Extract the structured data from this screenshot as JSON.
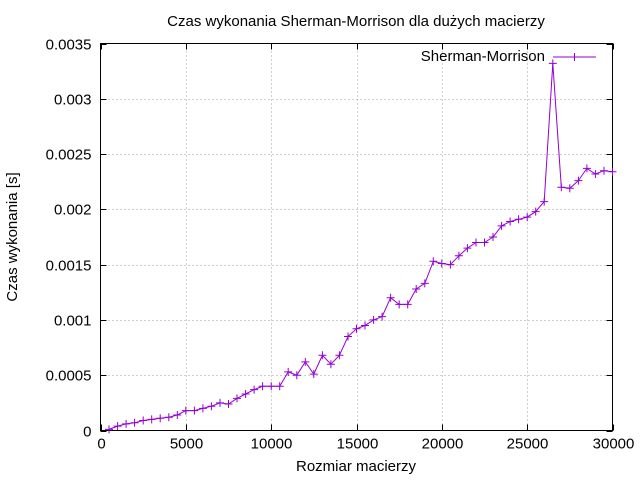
{
  "chart_data": {
    "type": "line",
    "title": "Czas wykonania Sherman-Morrison dla dużych macierzy",
    "xlabel": "Rozmiar macierzy",
    "ylabel": "Czas wykonania [s]",
    "xlim": [
      0,
      30000
    ],
    "ylim": [
      0,
      0.0035
    ],
    "xticks": [
      0,
      5000,
      10000,
      15000,
      20000,
      25000,
      30000
    ],
    "xtick_labels": [
      "0",
      "5000",
      "10000",
      "15000",
      "20000",
      "25000",
      "30000"
    ],
    "yticks": [
      0,
      0.0005,
      0.001,
      0.0015,
      0.002,
      0.0025,
      0.003,
      0.0035
    ],
    "ytick_labels": [
      "0",
      "0.0005",
      "0.001",
      "0.0015",
      "0.002",
      "0.0025",
      "0.003",
      "0.0035"
    ],
    "grid": true,
    "legend_position": "top-right",
    "series": [
      {
        "name": "Sherman-Morrison",
        "color": "#9400d3",
        "marker": "plus",
        "x": [
          500,
          1000,
          1500,
          2000,
          2500,
          3000,
          3500,
          4000,
          4500,
          5000,
          5500,
          6000,
          6500,
          7000,
          7500,
          8000,
          8500,
          9000,
          9500,
          10000,
          10500,
          11000,
          11500,
          12000,
          12500,
          13000,
          13500,
          14000,
          14500,
          15000,
          15500,
          16000,
          16500,
          17000,
          17500,
          18000,
          18500,
          19000,
          19500,
          20000,
          20500,
          21000,
          21500,
          22000,
          22500,
          23000,
          23500,
          24000,
          24500,
          25000,
          25500,
          26000,
          26500,
          27000,
          27500,
          28000,
          28500,
          29000,
          29500,
          30000
        ],
        "y": [
          1e-05,
          4e-05,
          6e-05,
          7e-05,
          9e-05,
          0.0001,
          0.00011,
          0.00012,
          0.00014,
          0.00018,
          0.00018,
          0.0002,
          0.00022,
          0.00025,
          0.00024,
          0.00029,
          0.00033,
          0.00037,
          0.0004,
          0.0004,
          0.0004,
          0.00053,
          0.0005,
          0.00062,
          0.00051,
          0.00068,
          0.0006,
          0.00068,
          0.00085,
          0.00092,
          0.00095,
          0.001,
          0.00103,
          0.0012,
          0.00114,
          0.00114,
          0.00128,
          0.00133,
          0.00153,
          0.00151,
          0.0015,
          0.00158,
          0.00165,
          0.0017,
          0.0017,
          0.00175,
          0.00185,
          0.00189,
          0.00191,
          0.00193,
          0.00198,
          0.00207,
          0.00332,
          0.0022,
          0.00219,
          0.00226,
          0.00237,
          0.00232,
          0.00235,
          0.00234
        ]
      }
    ]
  }
}
